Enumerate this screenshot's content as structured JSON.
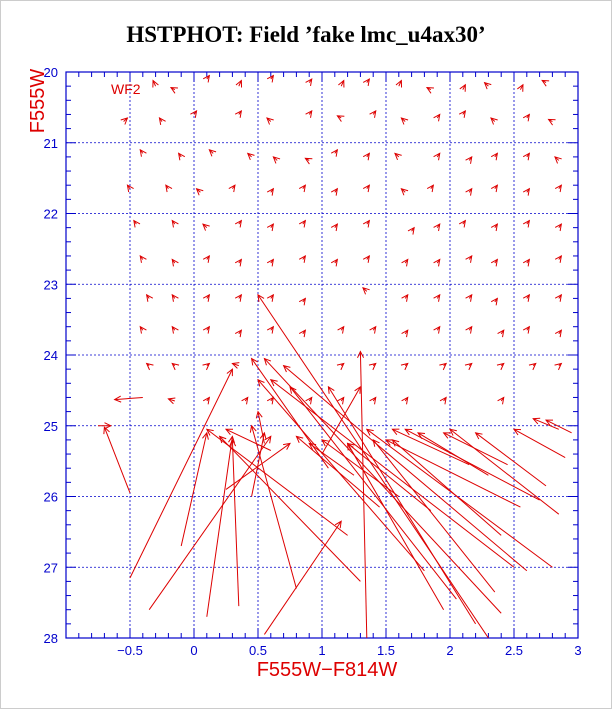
{
  "chart_data": {
    "type": "scatter",
    "title": "HSTPHOT: Field ’fake lmc_u4ax30’",
    "xlabel": "F555W−F814W",
    "ylabel": "F555W",
    "panel_label": "WF2",
    "xlim": [
      -1.0,
      3.0
    ],
    "ylim": [
      28,
      20
    ],
    "x_ticks": [
      -0.5,
      0,
      0.5,
      1,
      1.5,
      2,
      2.5,
      3
    ],
    "x_tick_labels": [
      "−0.5",
      "0",
      "0.5",
      "1",
      "1.5",
      "2",
      "2.5",
      "3"
    ],
    "y_ticks": [
      20,
      21,
      22,
      23,
      24,
      25,
      26,
      27,
      28
    ],
    "y_tick_labels": [
      "20",
      "21",
      "22",
      "23",
      "24",
      "25",
      "26",
      "27",
      "28"
    ],
    "grid_x": [
      -0.5,
      0,
      0.5,
      1,
      1.5,
      2,
      2.5
    ],
    "grid_y": [
      21,
      22,
      23,
      24,
      25,
      26,
      27
    ],
    "colors": {
      "axis": "#0000cc",
      "grid": "#0000cc",
      "data": "#dd0000",
      "title": "#000000"
    },
    "series": [
      {
        "description_type": "displacement_vectors",
        "vectors": [
          [
            -0.3,
            20.2,
            -0.32,
            20.12
          ],
          [
            -0.15,
            20.25,
            -0.18,
            20.22
          ],
          [
            0.1,
            20.1,
            0.12,
            20.05
          ],
          [
            0.35,
            20.2,
            0.37,
            20.12
          ],
          [
            0.6,
            20.1,
            0.62,
            20.05
          ],
          [
            0.9,
            20.15,
            0.92,
            20.1
          ],
          [
            1.15,
            20.2,
            1.17,
            20.12
          ],
          [
            1.35,
            20.15,
            1.37,
            20.1
          ],
          [
            1.6,
            20.2,
            1.62,
            20.12
          ],
          [
            1.85,
            20.25,
            1.82,
            20.22
          ],
          [
            2.1,
            20.25,
            2.12,
            20.18
          ],
          [
            2.3,
            20.2,
            2.27,
            20.15
          ],
          [
            2.55,
            20.25,
            2.57,
            20.18
          ],
          [
            2.75,
            20.15,
            2.72,
            20.12
          ],
          [
            -0.55,
            20.7,
            -0.52,
            20.65
          ],
          [
            -0.25,
            20.7,
            -0.27,
            20.65
          ],
          [
            0.0,
            20.6,
            0.02,
            20.55
          ],
          [
            0.35,
            20.6,
            0.37,
            20.55
          ],
          [
            0.6,
            20.7,
            0.57,
            20.65
          ],
          [
            0.9,
            20.6,
            0.92,
            20.55
          ],
          [
            1.15,
            20.65,
            1.12,
            20.62
          ],
          [
            1.4,
            20.6,
            1.42,
            20.55
          ],
          [
            1.65,
            20.7,
            1.62,
            20.65
          ],
          [
            1.9,
            20.65,
            1.92,
            20.6
          ],
          [
            2.1,
            20.6,
            2.12,
            20.55
          ],
          [
            2.35,
            20.7,
            2.32,
            20.65
          ],
          [
            2.6,
            20.65,
            2.62,
            20.6
          ],
          [
            2.8,
            20.7,
            2.77,
            20.67
          ],
          [
            -0.4,
            21.15,
            -0.42,
            21.1
          ],
          [
            -0.1,
            21.2,
            -0.12,
            21.15
          ],
          [
            0.15,
            21.15,
            0.12,
            21.1
          ],
          [
            0.45,
            21.2,
            0.42,
            21.15
          ],
          [
            0.65,
            21.25,
            0.62,
            21.2
          ],
          [
            0.9,
            21.25,
            0.87,
            21.22
          ],
          [
            1.1,
            21.15,
            1.12,
            21.1
          ],
          [
            1.35,
            21.2,
            1.37,
            21.15
          ],
          [
            1.6,
            21.2,
            1.57,
            21.15
          ],
          [
            1.9,
            21.2,
            1.92,
            21.15
          ],
          [
            2.15,
            21.25,
            2.17,
            21.2
          ],
          [
            2.35,
            21.2,
            2.37,
            21.15
          ],
          [
            2.6,
            21.2,
            2.62,
            21.15
          ],
          [
            2.85,
            21.25,
            2.82,
            21.2
          ],
          [
            -0.5,
            21.65,
            -0.52,
            21.6
          ],
          [
            -0.2,
            21.65,
            -0.22,
            21.6
          ],
          [
            0.05,
            21.7,
            0.02,
            21.65
          ],
          [
            0.3,
            21.65,
            0.32,
            21.6
          ],
          [
            0.6,
            21.7,
            0.62,
            21.65
          ],
          [
            0.85,
            21.65,
            0.87,
            21.6
          ],
          [
            1.1,
            21.7,
            1.12,
            21.65
          ],
          [
            1.35,
            21.65,
            1.37,
            21.6
          ],
          [
            1.65,
            21.7,
            1.62,
            21.65
          ],
          [
            1.85,
            21.65,
            1.87,
            21.6
          ],
          [
            2.15,
            21.7,
            2.17,
            21.65
          ],
          [
            2.35,
            21.65,
            2.37,
            21.6
          ],
          [
            2.6,
            21.7,
            2.62,
            21.65
          ],
          [
            2.85,
            21.65,
            2.87,
            21.6
          ],
          [
            -0.45,
            22.15,
            -0.47,
            22.1
          ],
          [
            -0.15,
            22.15,
            -0.17,
            22.1
          ],
          [
            0.1,
            22.2,
            0.07,
            22.15
          ],
          [
            0.35,
            22.15,
            0.37,
            22.1
          ],
          [
            0.6,
            22.2,
            0.62,
            22.15
          ],
          [
            0.85,
            22.15,
            0.87,
            22.1
          ],
          [
            1.1,
            22.2,
            1.12,
            22.15
          ],
          [
            1.35,
            22.15,
            1.37,
            22.1
          ],
          [
            1.7,
            22.25,
            1.72,
            22.2
          ],
          [
            1.9,
            22.2,
            1.92,
            22.15
          ],
          [
            2.1,
            22.15,
            2.12,
            22.1
          ],
          [
            2.35,
            22.2,
            2.37,
            22.15
          ],
          [
            2.6,
            22.15,
            2.62,
            22.1
          ],
          [
            2.85,
            22.2,
            2.87,
            22.15
          ],
          [
            -0.4,
            22.65,
            -0.42,
            22.6
          ],
          [
            -0.15,
            22.7,
            -0.17,
            22.65
          ],
          [
            0.1,
            22.65,
            0.12,
            22.6
          ],
          [
            0.35,
            22.7,
            0.37,
            22.65
          ],
          [
            0.6,
            22.7,
            0.62,
            22.65
          ],
          [
            0.85,
            22.65,
            0.87,
            22.6
          ],
          [
            1.1,
            22.7,
            1.12,
            22.65
          ],
          [
            1.35,
            22.65,
            1.37,
            22.6
          ],
          [
            1.65,
            22.7,
            1.67,
            22.65
          ],
          [
            1.9,
            22.7,
            1.92,
            22.65
          ],
          [
            2.15,
            22.65,
            2.17,
            22.6
          ],
          [
            2.35,
            22.7,
            2.37,
            22.65
          ],
          [
            2.6,
            22.7,
            2.62,
            22.65
          ],
          [
            2.85,
            22.65,
            2.87,
            22.6
          ],
          [
            -0.35,
            23.2,
            -0.37,
            23.15
          ],
          [
            -0.15,
            23.2,
            -0.17,
            23.15
          ],
          [
            0.1,
            23.2,
            0.12,
            23.15
          ],
          [
            0.35,
            23.2,
            0.37,
            23.15
          ],
          [
            0.6,
            23.2,
            0.62,
            23.15
          ],
          [
            0.85,
            23.25,
            0.87,
            23.2
          ],
          [
            1.35,
            23.1,
            1.32,
            23.05
          ],
          [
            1.65,
            23.2,
            1.67,
            23.15
          ],
          [
            1.9,
            23.2,
            1.92,
            23.15
          ],
          [
            2.15,
            23.2,
            2.17,
            23.15
          ],
          [
            2.35,
            23.25,
            2.37,
            23.2
          ],
          [
            2.6,
            23.2,
            2.62,
            23.15
          ],
          [
            2.85,
            23.2,
            2.87,
            23.15
          ],
          [
            -0.4,
            23.65,
            -0.42,
            23.6
          ],
          [
            -0.15,
            23.65,
            -0.17,
            23.6
          ],
          [
            0.1,
            23.65,
            0.12,
            23.6
          ],
          [
            0.35,
            23.7,
            0.37,
            23.65
          ],
          [
            0.6,
            23.65,
            0.62,
            23.6
          ],
          [
            0.85,
            23.7,
            0.87,
            23.65
          ],
          [
            1.15,
            23.65,
            1.17,
            23.6
          ],
          [
            1.4,
            23.65,
            1.42,
            23.6
          ],
          [
            1.65,
            23.7,
            1.67,
            23.65
          ],
          [
            1.9,
            23.65,
            1.92,
            23.6
          ],
          [
            2.15,
            23.65,
            2.17,
            23.6
          ],
          [
            2.4,
            23.7,
            2.42,
            23.65
          ],
          [
            2.6,
            23.65,
            2.62,
            23.6
          ],
          [
            2.85,
            23.7,
            2.87,
            23.65
          ],
          [
            -0.35,
            24.15,
            -0.37,
            24.12
          ],
          [
            -0.15,
            24.15,
            -0.17,
            24.12
          ],
          [
            0.1,
            24.15,
            0.12,
            24.12
          ],
          [
            0.35,
            24.15,
            0.3,
            24.12
          ],
          [
            1.15,
            24.15,
            1.17,
            24.12
          ],
          [
            1.4,
            24.15,
            1.42,
            24.12
          ],
          [
            1.65,
            24.15,
            1.67,
            24.12
          ],
          [
            1.95,
            24.15,
            1.97,
            24.12
          ],
          [
            2.15,
            24.15,
            2.17,
            24.12
          ],
          [
            2.4,
            24.15,
            2.42,
            24.12
          ],
          [
            2.65,
            24.15,
            2.67,
            24.12
          ],
          [
            2.85,
            24.15,
            2.87,
            24.12
          ],
          [
            -0.4,
            24.6,
            -0.62,
            24.63
          ],
          [
            -0.15,
            24.65,
            -0.2,
            24.62
          ],
          [
            0.1,
            24.65,
            0.12,
            24.6
          ],
          [
            0.4,
            24.65,
            0.42,
            24.6
          ],
          [
            0.6,
            24.65,
            0.62,
            24.6
          ],
          [
            0.9,
            24.65,
            0.92,
            24.6
          ],
          [
            1.15,
            24.65,
            1.17,
            24.6
          ],
          [
            1.4,
            24.65,
            1.42,
            24.6
          ],
          [
            1.65,
            24.65,
            1.67,
            24.6
          ],
          [
            1.95,
            24.65,
            1.97,
            24.6
          ],
          [
            2.4,
            24.65,
            2.42,
            24.6
          ],
          [
            2.85,
            25.05,
            2.65,
            24.9
          ],
          [
            2.95,
            25.1,
            2.75,
            24.92
          ],
          [
            -0.5,
            25.95,
            -0.7,
            25.02
          ],
          [
            -0.5,
            27.15,
            0.3,
            24.2
          ],
          [
            -0.1,
            26.7,
            0.1,
            25.1
          ],
          [
            -0.35,
            27.6,
            0.6,
            25.15
          ],
          [
            0.1,
            27.7,
            0.3,
            25.15
          ],
          [
            0.35,
            27.55,
            0.3,
            25.2
          ],
          [
            0.55,
            27.95,
            1.15,
            26.35
          ],
          [
            0.8,
            27.3,
            0.45,
            25.0
          ],
          [
            1.3,
            27.2,
            0.2,
            25.15
          ],
          [
            1.2,
            26.55,
            0.1,
            25.05
          ],
          [
            1.35,
            28.0,
            1.3,
            23.95
          ],
          [
            1.8,
            27.05,
            0.5,
            24.35
          ],
          [
            2.05,
            27.45,
            0.75,
            24.45
          ],
          [
            2.3,
            28.0,
            0.5,
            23.15
          ],
          [
            2.2,
            27.8,
            1.05,
            24.45
          ],
          [
            2.35,
            27.35,
            1.4,
            25.2
          ],
          [
            2.4,
            27.65,
            0.55,
            24.05
          ],
          [
            2.6,
            27.05,
            0.7,
            24.15
          ],
          [
            2.7,
            26.05,
            1.65,
            25.05
          ],
          [
            2.8,
            27.0,
            1.35,
            25.05
          ],
          [
            2.4,
            26.55,
            1.55,
            25.2
          ],
          [
            2.55,
            26.15,
            1.5,
            25.2
          ],
          [
            2.15,
            25.55,
            1.55,
            25.05
          ],
          [
            2.3,
            25.7,
            1.75,
            25.1
          ],
          [
            2.45,
            25.55,
            1.95,
            25.1
          ],
          [
            2.85,
            26.25,
            2.0,
            25.05
          ],
          [
            2.75,
            25.85,
            2.2,
            25.1
          ],
          [
            2.9,
            25.45,
            2.5,
            25.05
          ],
          [
            1.85,
            26.2,
            1.2,
            25.25
          ],
          [
            1.95,
            27.6,
            1.2,
            25.25
          ],
          [
            2.5,
            27.0,
            0.6,
            24.35
          ],
          [
            0.6,
            25.35,
            0.25,
            25.05
          ],
          [
            0.55,
            25.25,
            0.5,
            24.8
          ],
          [
            0.45,
            26.0,
            0.55,
            25.1
          ],
          [
            1.45,
            26.15,
            0.8,
            25.15
          ],
          [
            1.6,
            26.0,
            1.0,
            25.2
          ],
          [
            0.25,
            25.9,
            0.75,
            25.25
          ],
          [
            1.0,
            25.4,
            1.3,
            24.45
          ],
          [
            1.05,
            25.6,
            0.45,
            24.05
          ],
          [
            1.25,
            25.7,
            0.9,
            25.25
          ],
          [
            -0.75,
            25.0,
            -0.65,
            25.0
          ]
        ]
      }
    ]
  }
}
